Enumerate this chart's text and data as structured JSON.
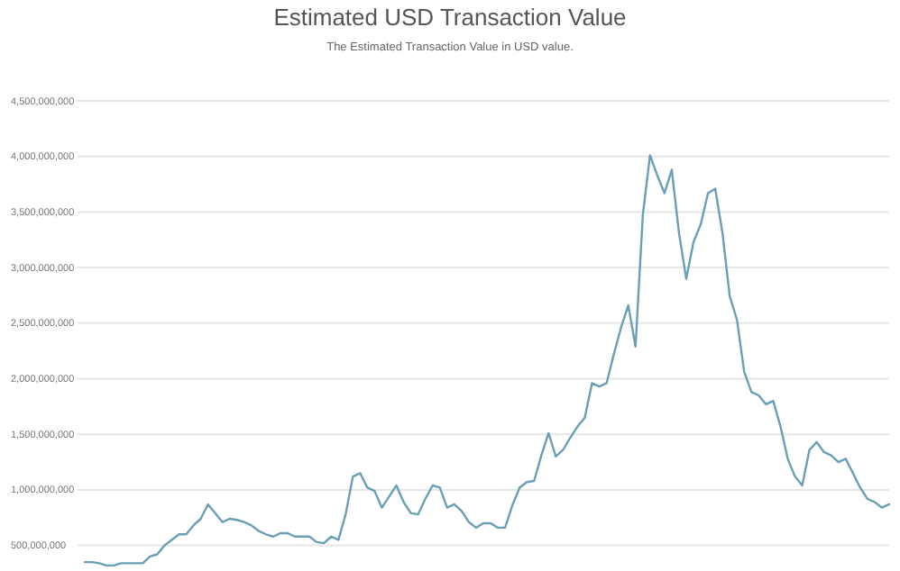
{
  "chart_data": {
    "type": "line",
    "title": "Estimated USD Transaction Value",
    "subtitle": "The Estimated Transaction Value in USD value.",
    "categories": [
      null,
      null,
      null,
      null,
      null,
      null,
      null,
      null,
      null,
      null,
      null,
      null,
      null,
      null,
      null,
      null,
      null,
      null,
      null,
      null,
      null,
      null,
      null,
      null,
      null,
      null,
      null,
      null,
      null,
      null,
      null,
      null,
      null,
      null,
      null,
      null,
      null,
      null,
      null,
      null,
      null,
      null,
      null,
      null,
      null,
      null,
      null,
      null,
      null,
      null,
      null,
      null,
      null,
      null,
      null,
      null,
      null,
      null,
      null,
      null,
      null,
      null,
      null,
      null,
      null,
      null,
      null,
      null,
      null,
      null,
      null,
      null,
      null,
      null,
      null,
      null,
      null,
      null,
      null,
      null,
      null,
      null,
      null,
      null,
      null,
      null,
      null,
      null,
      null,
      null,
      null,
      null,
      null,
      null,
      null,
      null,
      null,
      null,
      null,
      null,
      null,
      null,
      null,
      null,
      null,
      null,
      null,
      null,
      null,
      null,
      null,
      null
    ],
    "series": [
      {
        "color": "#6a9fb5",
        "values": [
          350000000,
          350000000,
          340000000,
          320000000,
          320000000,
          340000000,
          340000000,
          340000000,
          340000000,
          400000000,
          420000000,
          500000000,
          550000000,
          600000000,
          600000000,
          680000000,
          740000000,
          870000000,
          790000000,
          710000000,
          740000000,
          730000000,
          710000000,
          680000000,
          630000000,
          600000000,
          580000000,
          610000000,
          610000000,
          580000000,
          580000000,
          580000000,
          530000000,
          520000000,
          580000000,
          550000000,
          780000000,
          1120000000,
          1150000000,
          1020000000,
          990000000,
          840000000,
          940000000,
          1040000000,
          890000000,
          790000000,
          780000000,
          920000000,
          1040000000,
          1020000000,
          840000000,
          870000000,
          810000000,
          710000000,
          660000000,
          700000000,
          700000000,
          660000000,
          660000000,
          860000000,
          1020000000,
          1070000000,
          1080000000,
          1310000000,
          1510000000,
          1300000000,
          1360000000,
          1470000000,
          1570000000,
          1650000000,
          1960000000,
          1930000000,
          1960000000,
          2220000000,
          2460000000,
          2660000000,
          2290000000,
          3470000000,
          4010000000,
          3830000000,
          3670000000,
          3880000000,
          3310000000,
          2900000000,
          3230000000,
          3390000000,
          3670000000,
          3710000000,
          3310000000,
          2740000000,
          2530000000,
          2060000000,
          1880000000,
          1850000000,
          1770000000,
          1800000000,
          1570000000,
          1280000000,
          1120000000,
          1040000000,
          1360000000,
          1430000000,
          1340000000,
          1310000000,
          1250000000,
          1280000000,
          1150000000,
          1020000000,
          920000000,
          890000000,
          840000000,
          870000000
        ]
      }
    ],
    "ylim": [
      270000000,
      4500000000
    ],
    "yticks": [
      {
        "value": 500000000,
        "label": "500,000,000"
      },
      {
        "value": 1000000000,
        "label": "1,000,000,000"
      },
      {
        "value": 1500000000,
        "label": "1,500,000,000"
      },
      {
        "value": 2000000000,
        "label": "2,000,000,000"
      },
      {
        "value": 2500000000,
        "label": "2,500,000,000"
      },
      {
        "value": 3000000000,
        "label": "3,000,000,000"
      },
      {
        "value": 3500000000,
        "label": "3,500,000,000"
      },
      {
        "value": 4000000000,
        "label": "4,000,000,000"
      },
      {
        "value": 4500000000,
        "label": "4,500,000,000"
      }
    ],
    "grid": "y",
    "marker": "none",
    "line_style": "solid"
  }
}
